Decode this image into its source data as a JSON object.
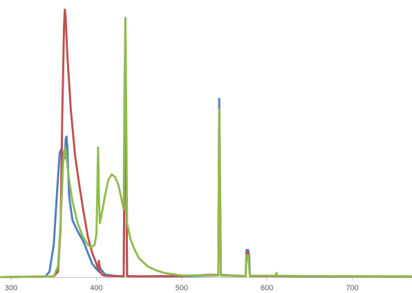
{
  "chart_data": {
    "type": "line",
    "title": "",
    "xlabel": "",
    "ylabel": "",
    "xlim": [
      287,
      770
    ],
    "ylim": [
      0,
      1
    ],
    "grid": false,
    "legend": "none",
    "x_ticks": [
      300,
      400,
      500,
      600,
      700
    ],
    "x_tick_labels": [
      "300",
      "400",
      "500",
      "600",
      "700"
    ],
    "series": [
      {
        "color": "#4f7fbe",
        "points": [
          [
            287,
            0
          ],
          [
            340,
            0.002
          ],
          [
            345,
            0.02
          ],
          [
            350,
            0.12
          ],
          [
            354,
            0.32
          ],
          [
            357,
            0.46
          ],
          [
            359,
            0.475
          ],
          [
            361,
            0.45
          ],
          [
            363,
            0.44
          ],
          [
            364,
            0.51
          ],
          [
            365,
            0.52
          ],
          [
            366,
            0.48
          ],
          [
            368,
            0.3
          ],
          [
            372,
            0.21
          ],
          [
            378,
            0.17
          ],
          [
            385,
            0.13
          ],
          [
            390,
            0.09
          ],
          [
            395,
            0.05
          ],
          [
            400,
            0.03
          ],
          [
            403,
            0.02
          ],
          [
            404,
            0.04
          ],
          [
            405,
            0.03
          ],
          [
            410,
            0.01
          ],
          [
            420,
            0.005
          ],
          [
            432,
            0.003
          ],
          [
            434,
            0.85
          ],
          [
            436,
            0.003
          ],
          [
            450,
            0.003
          ],
          [
            500,
            0.003
          ],
          [
            540,
            0.006
          ],
          [
            543,
            0.006
          ],
          [
            544,
            0.66
          ],
          [
            546,
            0.006
          ],
          [
            570,
            0.004
          ],
          [
            575,
            0.004
          ],
          [
            576,
            0.1
          ],
          [
            578,
            0.1
          ],
          [
            579,
            0.08
          ],
          [
            580,
            0.005
          ],
          [
            610,
            0.004
          ],
          [
            611,
            0.015
          ],
          [
            612,
            0.004
          ],
          [
            650,
            0.002
          ],
          [
            770,
            0.002
          ]
        ]
      },
      {
        "color": "#c0504d",
        "points": [
          [
            287,
            0
          ],
          [
            350,
            0.003
          ],
          [
            355,
            0.02
          ],
          [
            358,
            0.18
          ],
          [
            360,
            0.6
          ],
          [
            362,
            0.92
          ],
          [
            363,
            0.99
          ],
          [
            364,
            0.96
          ],
          [
            366,
            0.82
          ],
          [
            370,
            0.62
          ],
          [
            375,
            0.45
          ],
          [
            380,
            0.34
          ],
          [
            385,
            0.24
          ],
          [
            390,
            0.15
          ],
          [
            395,
            0.09
          ],
          [
            400,
            0.05
          ],
          [
            402,
            0.03
          ],
          [
            403,
            0.06
          ],
          [
            404,
            0.02
          ],
          [
            407,
            0.008
          ],
          [
            410,
            0.005
          ],
          [
            420,
            0.004
          ],
          [
            432,
            0.004
          ],
          [
            434,
            0.92
          ],
          [
            436,
            0.004
          ],
          [
            450,
            0.003
          ],
          [
            500,
            0.004
          ],
          [
            530,
            0.008
          ],
          [
            543,
            0.008
          ],
          [
            544,
            0.62
          ],
          [
            546,
            0.008
          ],
          [
            575,
            0.004
          ],
          [
            576,
            0.09
          ],
          [
            578,
            0.09
          ],
          [
            580,
            0.004
          ],
          [
            610,
            0.004
          ],
          [
            611,
            0.012
          ],
          [
            612,
            0.004
          ],
          [
            650,
            0.003
          ],
          [
            770,
            0.002
          ]
        ]
      },
      {
        "color": "#8fbc4f",
        "points": [
          [
            287,
            0
          ],
          [
            350,
            0.003
          ],
          [
            355,
            0.04
          ],
          [
            358,
            0.2
          ],
          [
            361,
            0.42
          ],
          [
            363,
            0.48
          ],
          [
            365,
            0.44
          ],
          [
            368,
            0.36
          ],
          [
            372,
            0.28
          ],
          [
            378,
            0.2
          ],
          [
            384,
            0.15
          ],
          [
            390,
            0.12
          ],
          [
            394,
            0.11
          ],
          [
            398,
            0.12
          ],
          [
            400,
            0.16
          ],
          [
            401,
            0.3
          ],
          [
            402,
            0.48
          ],
          [
            403,
            0.3
          ],
          [
            404,
            0.2
          ],
          [
            406,
            0.23
          ],
          [
            410,
            0.3
          ],
          [
            414,
            0.36
          ],
          [
            418,
            0.38
          ],
          [
            422,
            0.37
          ],
          [
            426,
            0.34
          ],
          [
            430,
            0.28
          ],
          [
            432,
            0.25
          ],
          [
            433,
            0.7
          ],
          [
            434,
            0.96
          ],
          [
            435,
            0.6
          ],
          [
            436,
            0.2
          ],
          [
            440,
            0.14
          ],
          [
            445,
            0.1
          ],
          [
            450,
            0.07
          ],
          [
            460,
            0.04
          ],
          [
            470,
            0.025
          ],
          [
            480,
            0.015
          ],
          [
            500,
            0.006
          ],
          [
            530,
            0.006
          ],
          [
            543,
            0.006
          ],
          [
            544,
            0.62
          ],
          [
            546,
            0.006
          ],
          [
            575,
            0.004
          ],
          [
            576,
            0.08
          ],
          [
            578,
            0.08
          ],
          [
            580,
            0.005
          ],
          [
            610,
            0.005
          ],
          [
            611,
            0.015
          ],
          [
            612,
            0.005
          ],
          [
            650,
            0.004
          ],
          [
            770,
            0.003
          ]
        ]
      }
    ]
  }
}
